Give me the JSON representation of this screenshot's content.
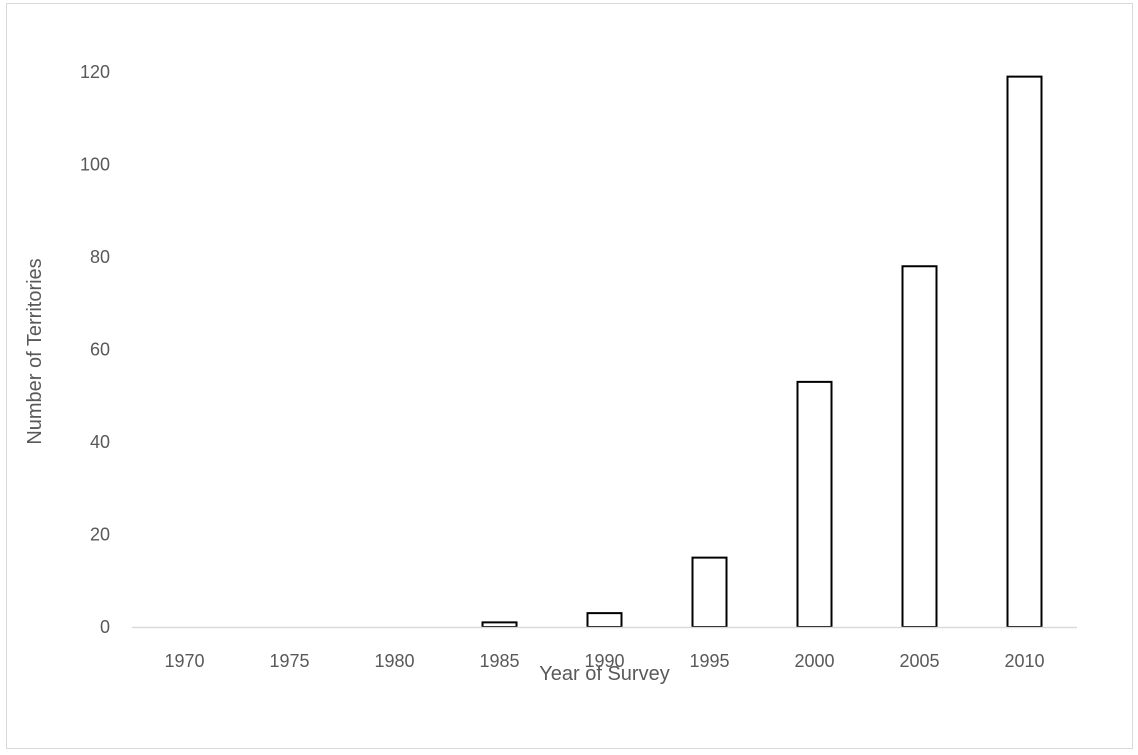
{
  "chart_data": {
    "type": "bar",
    "title": "",
    "xlabel": "Year of Survey",
    "ylabel": "Number of Territories",
    "categories": [
      "1970",
      "1975",
      "1980",
      "1985",
      "1990",
      "1995",
      "2000",
      "2005",
      "2010"
    ],
    "values": [
      0,
      0,
      0,
      1,
      3,
      15,
      53,
      78,
      119
    ],
    "ylim": [
      0,
      120
    ],
    "yticks": [
      "0",
      "20",
      "40",
      "60",
      "80",
      "100",
      "120"
    ],
    "grid": false,
    "legend": "none",
    "bar_fill": "#ffffff",
    "bar_stroke": "#000000",
    "axis_color": "#d9d9d9",
    "text_color": "#595959"
  }
}
